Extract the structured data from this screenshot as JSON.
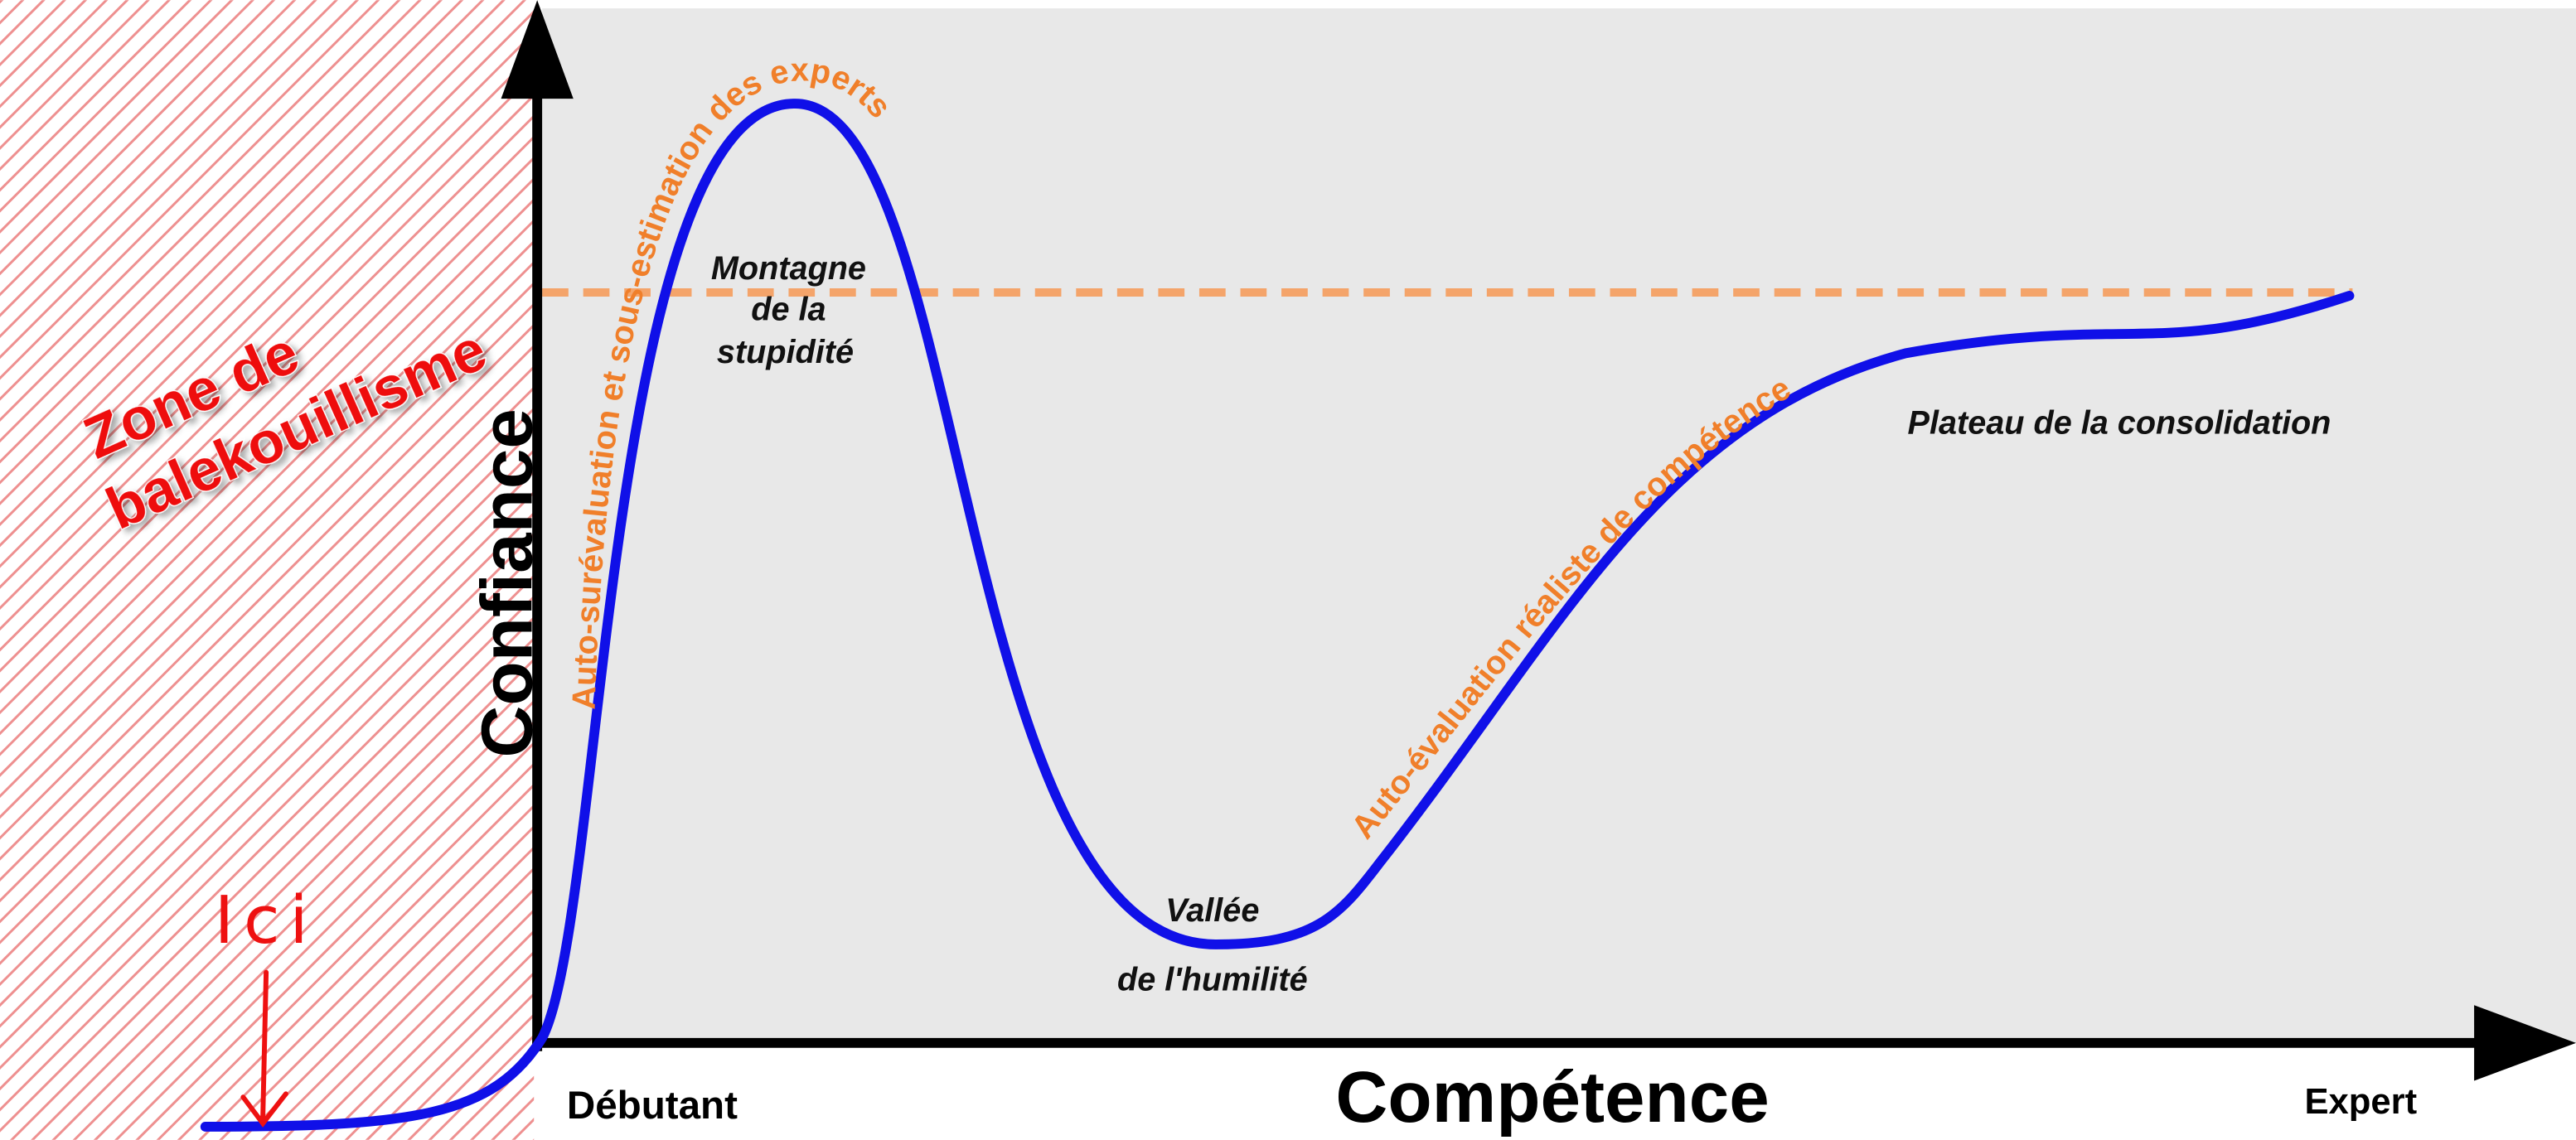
{
  "axes": {
    "y_label": "Confiance",
    "x_label": "Compétence",
    "x_start": "Débutant",
    "x_end": "Expert"
  },
  "zone": {
    "lines": [
      "Zone de",
      "balekouillisme"
    ]
  },
  "marker": "Ici",
  "annotations": {
    "peak": [
      "Montagne",
      "de la",
      "stupidité"
    ],
    "valley": [
      "Vallée",
      "de l'humilité"
    ],
    "plateau": "Plateau de la consolidation",
    "rise_curve": "Auto-surévaluation et sous-estimation des experts",
    "climb_curve": "Auto-évaluation réaliste de compétence"
  }
}
